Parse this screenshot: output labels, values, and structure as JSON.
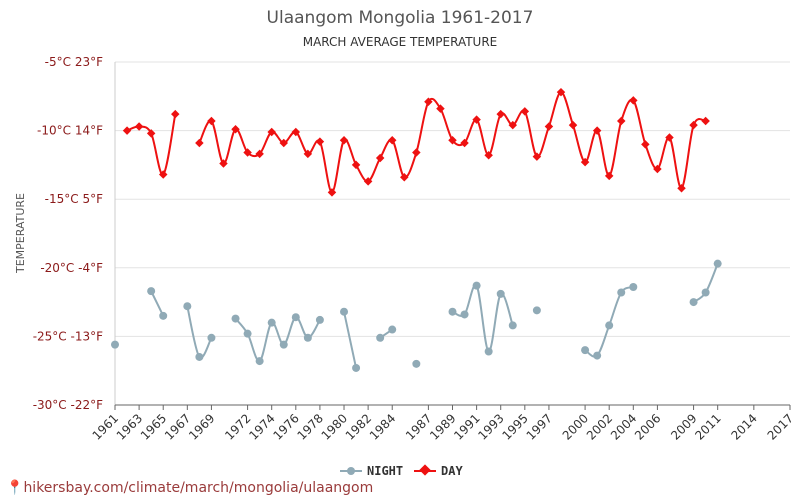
{
  "chart_data": {
    "type": "line",
    "title": "Ulaangom Mongolia 1961-2017",
    "subtitle": "MARCH AVERAGE TEMPERATURE",
    "ylabel": "TEMPERATURE",
    "ylim": [
      -30,
      -5
    ],
    "yticks": [
      {
        "value": -5,
        "label": "-5°C 23°F"
      },
      {
        "value": -10,
        "label": "-10°C 14°F"
      },
      {
        "value": -15,
        "label": "-15°C 5°F"
      },
      {
        "value": -20,
        "label": "-20°C -4°F"
      },
      {
        "value": -25,
        "label": "-25°C -13°F"
      },
      {
        "value": -30,
        "label": "-30°C -22°F"
      }
    ],
    "xlim": [
      1961,
      2017
    ],
    "xtick_labels": [
      "1961",
      "1963",
      "1965",
      "1967",
      "1969",
      "1972",
      "1974",
      "1976",
      "1978",
      "1980",
      "1982",
      "1984",
      "1987",
      "1989",
      "1991",
      "1993",
      "1995",
      "1997",
      "2000",
      "2002",
      "2004",
      "2006",
      "2009",
      "2011",
      "2014",
      "2017"
    ],
    "grid": true,
    "legend_position": "bottom-center",
    "series": [
      {
        "name": "NIGHT",
        "color": "#90aab6",
        "values": [
          [
            1961,
            -25.6
          ],
          [
            1962,
            null
          ],
          [
            1963,
            null
          ],
          [
            1964,
            -21.7
          ],
          [
            1965,
            -23.5
          ],
          [
            1966,
            null
          ],
          [
            1967,
            -22.8
          ],
          [
            1968,
            -26.5
          ],
          [
            1969,
            -25.1
          ],
          [
            1970,
            null
          ],
          [
            1971,
            -23.7
          ],
          [
            1972,
            -24.8
          ],
          [
            1973,
            -26.8
          ],
          [
            1974,
            -24.0
          ],
          [
            1975,
            -25.6
          ],
          [
            1976,
            -23.6
          ],
          [
            1977,
            -25.1
          ],
          [
            1978,
            -23.8
          ],
          [
            1979,
            null
          ],
          [
            1980,
            -23.2
          ],
          [
            1981,
            -27.3
          ],
          [
            1982,
            null
          ],
          [
            1983,
            -25.1
          ],
          [
            1984,
            -24.5
          ],
          [
            1985,
            null
          ],
          [
            1986,
            -27.0
          ],
          [
            1987,
            null
          ],
          [
            1988,
            null
          ],
          [
            1989,
            -23.2
          ],
          [
            1990,
            -23.4
          ],
          [
            1991,
            -21.3
          ],
          [
            1992,
            -26.1
          ],
          [
            1993,
            -21.9
          ],
          [
            1994,
            -24.2
          ],
          [
            1995,
            null
          ],
          [
            1996,
            -23.1
          ],
          [
            1997,
            null
          ],
          [
            1998,
            null
          ],
          [
            1999,
            null
          ],
          [
            2000,
            -26.0
          ],
          [
            2001,
            -26.4
          ],
          [
            2002,
            -24.2
          ],
          [
            2003,
            -21.8
          ],
          [
            2004,
            -21.4
          ],
          [
            2005,
            null
          ],
          [
            2006,
            null
          ],
          [
            2007,
            null
          ],
          [
            2008,
            null
          ],
          [
            2009,
            -22.5
          ],
          [
            2010,
            -21.8
          ],
          [
            2011,
            -19.7
          ]
        ]
      },
      {
        "name": "DAY",
        "color": "#ee1111",
        "values": [
          [
            1962,
            -10.0
          ],
          [
            1963,
            -9.7
          ],
          [
            1964,
            -10.2
          ],
          [
            1965,
            -13.2
          ],
          [
            1966,
            -8.8
          ],
          [
            1967,
            null
          ],
          [
            1968,
            -10.9
          ],
          [
            1969,
            -9.3
          ],
          [
            1970,
            -12.4
          ],
          [
            1971,
            -9.9
          ],
          [
            1972,
            -11.6
          ],
          [
            1973,
            -11.7
          ],
          [
            1974,
            -10.1
          ],
          [
            1975,
            -10.9
          ],
          [
            1976,
            -10.1
          ],
          [
            1977,
            -11.7
          ],
          [
            1978,
            -10.8
          ],
          [
            1979,
            -14.5
          ],
          [
            1980,
            -10.7
          ],
          [
            1981,
            -12.5
          ],
          [
            1982,
            -13.7
          ],
          [
            1983,
            -12.0
          ],
          [
            1984,
            -10.7
          ],
          [
            1985,
            -13.4
          ],
          [
            1986,
            -11.6
          ],
          [
            1987,
            -7.9
          ],
          [
            1988,
            -8.4
          ],
          [
            1989,
            -10.7
          ],
          [
            1990,
            -10.9
          ],
          [
            1991,
            -9.2
          ],
          [
            1992,
            -11.8
          ],
          [
            1993,
            -8.8
          ],
          [
            1994,
            -9.6
          ],
          [
            1995,
            -8.6
          ],
          [
            1996,
            -11.9
          ],
          [
            1997,
            -9.7
          ],
          [
            1998,
            -7.2
          ],
          [
            1999,
            -9.6
          ],
          [
            2000,
            -12.3
          ],
          [
            2001,
            -10.0
          ],
          [
            2002,
            -13.3
          ],
          [
            2003,
            -9.3
          ],
          [
            2004,
            -7.8
          ],
          [
            2005,
            -11.0
          ],
          [
            2006,
            -12.8
          ],
          [
            2007,
            -10.5
          ],
          [
            2008,
            -14.2
          ],
          [
            2009,
            -9.6
          ],
          [
            2010,
            -9.3
          ]
        ]
      }
    ]
  },
  "watermark": "hikersbay.com/climate/march/mongolia/ulaangom"
}
